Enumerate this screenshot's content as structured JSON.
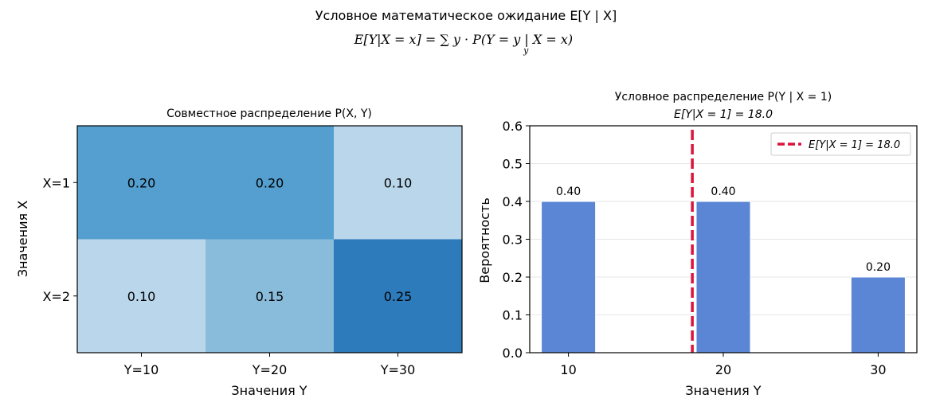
{
  "figure": {
    "suptitle_line1": "Условное математическое ожидание E[Y | X]",
    "suptitle_line2": "E[Y|X = x] = ∑ y · P(Y = y | X = x)",
    "suptitle_line2_sub": "y"
  },
  "chart_data": [
    {
      "type": "heatmap",
      "title": "Совместное распределение P(X, Y)",
      "xlabel": "Значения Y",
      "ylabel": "Значения X",
      "x_categories": [
        "Y=10",
        "Y=20",
        "Y=30"
      ],
      "y_categories": [
        "X=1",
        "X=2"
      ],
      "values": [
        [
          0.2,
          0.2,
          0.1
        ],
        [
          0.1,
          0.15,
          0.25
        ]
      ],
      "value_labels": [
        [
          "0.20",
          "0.20",
          "0.10"
        ],
        [
          "0.10",
          "0.15",
          "0.25"
        ]
      ],
      "colormap": "Blues",
      "colors": [
        [
          "#549fcf",
          "#549fcf",
          "#bad6eb"
        ],
        [
          "#bad6eb",
          "#89bbdb",
          "#2d7bbb"
        ]
      ]
    },
    {
      "type": "bar",
      "title_line1": "Условное распределение P(Y | X = 1)",
      "title_line2": "E[Y|X = 1] = 18.0",
      "xlabel": "Значения Y",
      "ylabel": "Вероятность",
      "x": [
        10,
        20,
        30
      ],
      "values": [
        0.4,
        0.4,
        0.2
      ],
      "value_labels": [
        "0.40",
        "0.40",
        "0.20"
      ],
      "xticks": [
        "10",
        "20",
        "30"
      ],
      "yticks": [
        "0.0",
        "0.1",
        "0.2",
        "0.3",
        "0.4",
        "0.5",
        "0.6"
      ],
      "xlim": [
        7.5,
        32.5
      ],
      "ylim": [
        0,
        0.6
      ],
      "bar_width": 3.5,
      "bar_color": "#5b86d5",
      "expected_value": 18.0,
      "expected_line_color": "#dc143c",
      "legend_label": "E[Y|X = 1] = 18.0",
      "legend_position": "top-right",
      "grid": "y"
    }
  ]
}
